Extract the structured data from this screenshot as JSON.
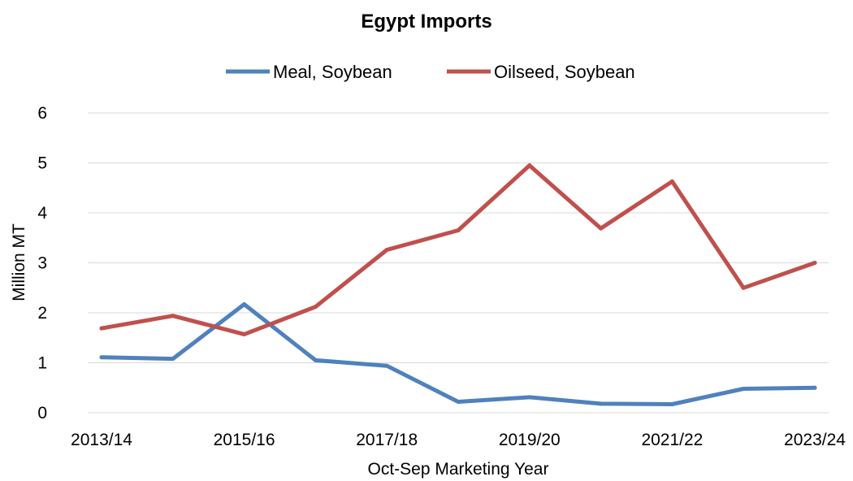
{
  "chart_data": {
    "type": "line",
    "title": "Egypt Imports",
    "xlabel": "Oct-Sep Marketing Year",
    "ylabel": "Million MT",
    "ylim": [
      0,
      6
    ],
    "yticks": [
      "0",
      "1",
      "2",
      "3",
      "4",
      "5",
      "6"
    ],
    "categories": [
      "2013/14",
      "2014/15",
      "2015/16",
      "2016/17",
      "2017/18",
      "2018/19",
      "2019/20",
      "2020/21",
      "2021/22",
      "2022/23",
      "2023/24"
    ],
    "xtick_labels": [
      "2013/14",
      "",
      "2015/16",
      "",
      "2017/18",
      "",
      "2019/20",
      "",
      "2021/22",
      "",
      "2023/24"
    ],
    "grid": true,
    "legend_position": "top",
    "series": [
      {
        "name": "Meal, Soybean",
        "color": "#4f81bd",
        "values": [
          1.11,
          1.08,
          2.17,
          1.05,
          0.94,
          0.22,
          0.31,
          0.18,
          0.17,
          0.48,
          0.5
        ]
      },
      {
        "name": "Oilseed, Soybean",
        "color": "#c0504d",
        "values": [
          1.69,
          1.94,
          1.57,
          2.12,
          3.26,
          3.65,
          4.95,
          3.69,
          4.63,
          2.5,
          3.0
        ]
      }
    ]
  }
}
